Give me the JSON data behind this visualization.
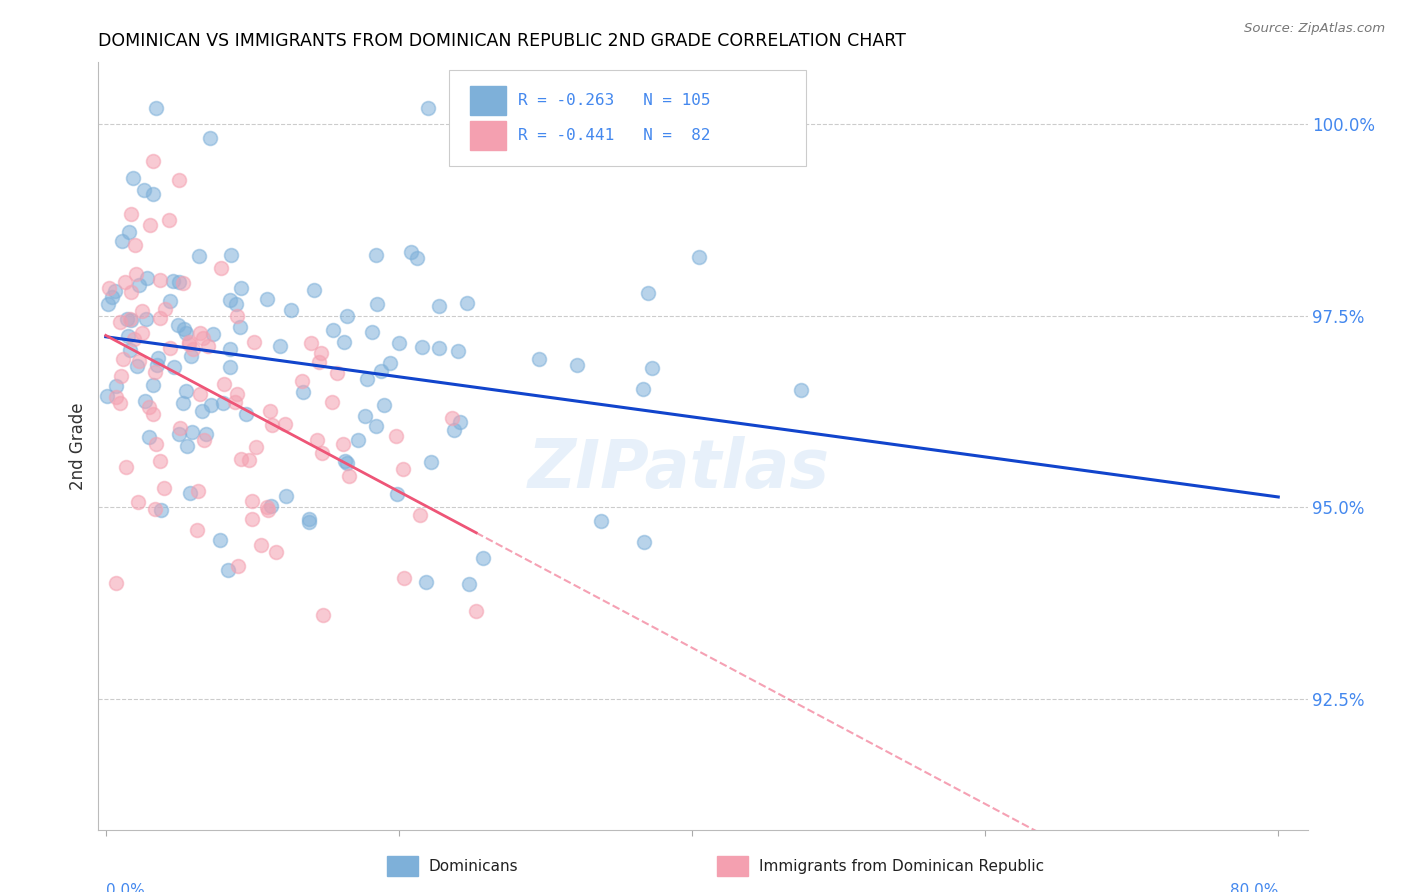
{
  "title": "DOMINICAN VS IMMIGRANTS FROM DOMINICAN REPUBLIC 2ND GRADE CORRELATION CHART",
  "source": "Source: ZipAtlas.com",
  "ylabel": "2nd Grade",
  "ytick_labels": [
    "92.5%",
    "95.0%",
    "97.5%",
    "100.0%"
  ],
  "ytick_values": [
    0.925,
    0.95,
    0.975,
    1.0
  ],
  "xlim": [
    -0.005,
    0.82
  ],
  "ylim": [
    0.908,
    1.008
  ],
  "blue_color": "#7EB0D9",
  "pink_color": "#F4A0B0",
  "trendline_blue_color": "#1144CC",
  "trendline_pink_color": "#EE5577",
  "watermark": "ZIPatlas",
  "legend_label_blue": "R = -0.263   N = 105",
  "legend_label_pink": "R = -0.441   N =  82",
  "bottom_label_blue": "Dominicans",
  "bottom_label_pink": "Immigrants from Dominican Republic"
}
